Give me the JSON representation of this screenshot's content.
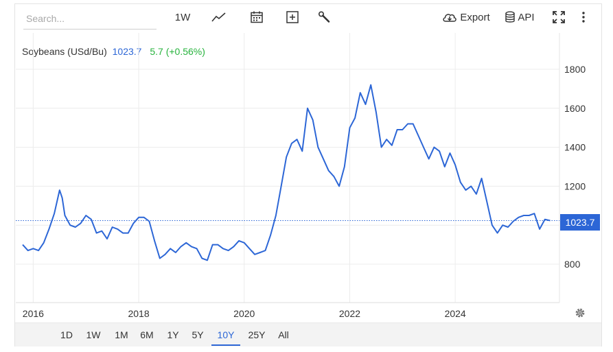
{
  "search": {
    "placeholder": "Search..."
  },
  "toolbar": {
    "interval_label": "1W",
    "export_label": "Export",
    "api_label": "API"
  },
  "legend": {
    "name": "Soybeans (USd/Bu)",
    "price": "1023.7",
    "change": "5.7 (+0.56%)"
  },
  "price_tag": "1023.7",
  "colors": {
    "line": "#2c66d6",
    "up": "#27b33d",
    "grid": "#ececec",
    "tag": "#2c66d6"
  },
  "range_buttons": [
    {
      "label": "1D"
    },
    {
      "label": "1W"
    },
    {
      "label": "1M"
    },
    {
      "label": "6M"
    },
    {
      "label": "1Y"
    },
    {
      "label": "5Y"
    },
    {
      "label": "10Y",
      "active": true
    },
    {
      "label": "25Y"
    },
    {
      "label": "All"
    }
  ],
  "chart_data": {
    "type": "line",
    "title": "",
    "xlabel": "",
    "ylabel": "",
    "series": [
      {
        "name": "Soybeans (USd/Bu)",
        "x": [
          2015.8,
          2015.9,
          2016.0,
          2016.1,
          2016.2,
          2016.3,
          2016.4,
          2016.5,
          2016.55,
          2016.6,
          2016.7,
          2016.8,
          2016.9,
          2017.0,
          2017.1,
          2017.2,
          2017.3,
          2017.4,
          2017.5,
          2017.6,
          2017.7,
          2017.8,
          2017.9,
          2018.0,
          2018.1,
          2018.2,
          2018.3,
          2018.4,
          2018.5,
          2018.6,
          2018.7,
          2018.8,
          2018.9,
          2019.0,
          2019.1,
          2019.2,
          2019.3,
          2019.4,
          2019.5,
          2019.6,
          2019.7,
          2019.8,
          2019.9,
          2020.0,
          2020.1,
          2020.2,
          2020.3,
          2020.4,
          2020.5,
          2020.6,
          2020.7,
          2020.8,
          2020.9,
          2021.0,
          2021.1,
          2021.2,
          2021.3,
          2021.4,
          2021.5,
          2021.6,
          2021.7,
          2021.8,
          2021.9,
          2022.0,
          2022.1,
          2022.2,
          2022.3,
          2022.4,
          2022.5,
          2022.6,
          2022.7,
          2022.8,
          2022.9,
          2023.0,
          2023.1,
          2023.2,
          2023.3,
          2023.4,
          2023.5,
          2023.6,
          2023.7,
          2023.8,
          2023.9,
          2024.0,
          2024.1,
          2024.2,
          2024.3,
          2024.4,
          2024.5,
          2024.6,
          2024.7,
          2024.8,
          2024.9,
          2025.0,
          2025.1,
          2025.2,
          2025.3,
          2025.4,
          2025.5,
          2025.6,
          2025.7,
          2025.8
        ],
        "values": [
          900,
          870,
          880,
          870,
          910,
          980,
          1060,
          1180,
          1140,
          1050,
          1000,
          990,
          1010,
          1050,
          1030,
          960,
          970,
          930,
          990,
          980,
          960,
          960,
          1010,
          1040,
          1040,
          1020,
          920,
          830,
          850,
          880,
          860,
          890,
          910,
          890,
          880,
          830,
          820,
          900,
          900,
          880,
          870,
          890,
          920,
          910,
          880,
          850,
          860,
          870,
          950,
          1050,
          1200,
          1350,
          1420,
          1440,
          1380,
          1600,
          1540,
          1400,
          1340,
          1280,
          1250,
          1200,
          1300,
          1500,
          1550,
          1680,
          1620,
          1720,
          1580,
          1400,
          1440,
          1410,
          1490,
          1490,
          1520,
          1520,
          1460,
          1400,
          1340,
          1400,
          1380,
          1300,
          1370,
          1310,
          1220,
          1180,
          1200,
          1160,
          1240,
          1120,
          1000,
          960,
          1000,
          990,
          1020,
          1040,
          1050,
          1050,
          1060,
          980,
          1030,
          1023.7
        ]
      }
    ],
    "yticks": [
      800,
      1000,
      1200,
      1400,
      1600,
      1800
    ],
    "ytick_labels": [
      "800",
      "",
      "1200",
      "1400",
      "1600",
      "1800"
    ],
    "xticks": [
      2016,
      2018,
      2020,
      2022,
      2024
    ],
    "ylim": [
      600,
      1800
    ],
    "xlim": [
      2015.8,
      2025.95
    ],
    "last_value": 1023.7,
    "grid": true
  }
}
